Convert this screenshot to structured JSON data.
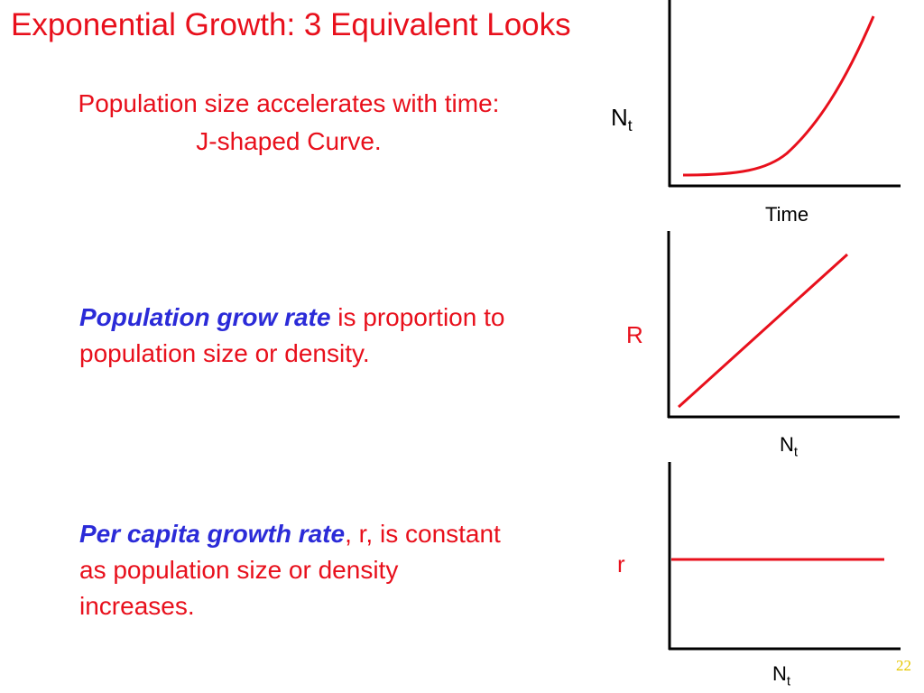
{
  "slide": {
    "title": "Exponential Growth: 3 Equivalent Looks",
    "subtitle_line1": "Population size accelerates with time:",
    "subtitle_line2": "J-shaped Curve.",
    "para1": {
      "emphasis": "Population grow rate",
      "rest": " is proportion to population size or density."
    },
    "para2": {
      "emphasis": "Per capita growth rate",
      "rest": ", r, is constant as population size or density increases."
    },
    "page_number": "22"
  },
  "colors": {
    "title_red": "#e8101c",
    "emphasis_blue": "#2b2bd8",
    "curve_red": "#e8101c",
    "axis_black": "#000000",
    "page_number_yellow": "#e6c700"
  },
  "chart_data": [
    {
      "type": "line",
      "shape": "exponential (J-shaped)",
      "ylabel_main": "N",
      "ylabel_sub": "t",
      "xlabel": "Time",
      "series": [
        {
          "values": []
        }
      ]
    },
    {
      "type": "line",
      "shape": "linear increasing",
      "ylabel": "R",
      "xlabel_main": "N",
      "xlabel_sub": "t"
    },
    {
      "type": "line",
      "shape": "constant (horizontal)",
      "ylabel": "r",
      "xlabel_main": "N",
      "xlabel_sub": "t"
    }
  ]
}
